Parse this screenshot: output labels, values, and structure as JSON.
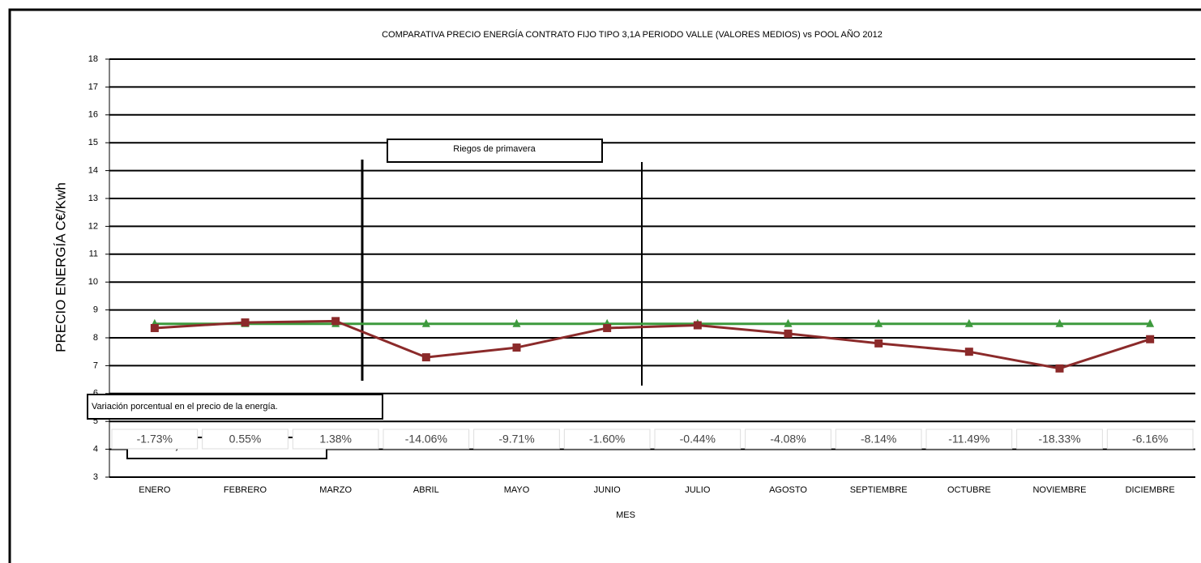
{
  "chart_data": {
    "type": "line",
    "title": "COMPARATIVA PRECIO ENERGÍA CONTRATO FIJO TIPO 3,1A PERIODO VALLE (VALORES MEDIOS) vs POOL AÑO 2012",
    "y_label": "PRECIO ENERGÍA C€/Kwh",
    "x_label": "MES",
    "categories": [
      "ENERO",
      "FEBRERO",
      "MARZO",
      "ABRIL",
      "MAYO",
      "JUNIO",
      "JULIO",
      "AGOSTO",
      "SEPTIEMBRE",
      "OCTUBRE",
      "NOVIEMBRE",
      "DICIEMBRE"
    ],
    "series": [
      {
        "name": "Fijo",
        "color": "#3d9a3d",
        "marker": "triangle",
        "values": [
          8.5,
          8.5,
          8.5,
          8.5,
          8.5,
          8.5,
          8.5,
          8.5,
          8.5,
          8.5,
          8.5,
          8.5
        ]
      },
      {
        "name": "Pool",
        "color": "#8b2a2a",
        "marker": "square",
        "values": [
          8.35,
          8.55,
          8.6,
          7.3,
          7.65,
          8.35,
          8.45,
          8.15,
          7.8,
          7.5,
          6.9,
          7.95
        ]
      }
    ],
    "ylim": [
      3,
      18
    ],
    "yticks": [
      3,
      4,
      5,
      6,
      7,
      8,
      9,
      10,
      11,
      12,
      13,
      14,
      15,
      16,
      17,
      18
    ],
    "grid": true,
    "annotations": [
      "Riegos de primavera",
      "Variación porcentual en el precio de la energía."
    ],
    "variation_row": [
      "-1.73%",
      "0.55%",
      "1.38%",
      "-14.06%",
      "-9.71%",
      "-1.60%",
      "-0.44%",
      "-4.08%",
      "-8.14%",
      "-11.49%",
      "-18.33%",
      "-6.16%"
    ]
  }
}
